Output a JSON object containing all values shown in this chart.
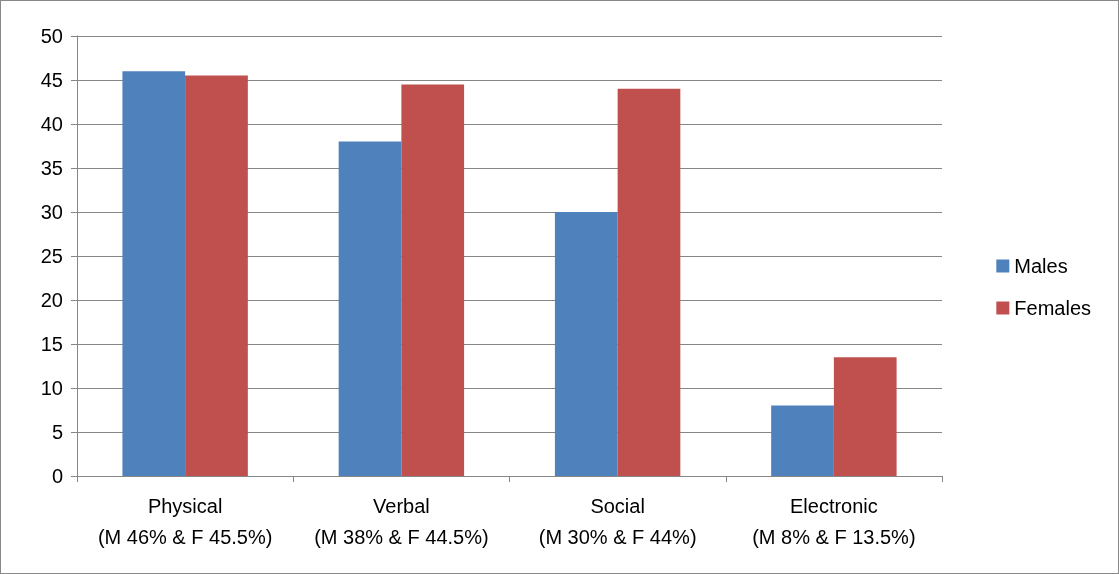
{
  "chart_data": {
    "type": "bar",
    "categories": [
      "Physical\n(M 46% & F 45.5%)",
      "Verbal\n(M 38% & F 44.5%)",
      "Social\n(M 30% & F 44%)",
      "Electronic\n(M 8% & F 13.5%)"
    ],
    "series": [
      {
        "name": "Males",
        "color": "#4f81bd",
        "values": [
          46,
          38,
          30,
          8
        ]
      },
      {
        "name": "Females",
        "color": "#c0504d",
        "values": [
          45.5,
          44.5,
          44,
          13.5
        ]
      }
    ],
    "ylim": [
      0,
      50
    ],
    "yticks": [
      0,
      5,
      10,
      15,
      20,
      25,
      30,
      35,
      40,
      45,
      50
    ],
    "grid": "y",
    "legend": "right"
  }
}
